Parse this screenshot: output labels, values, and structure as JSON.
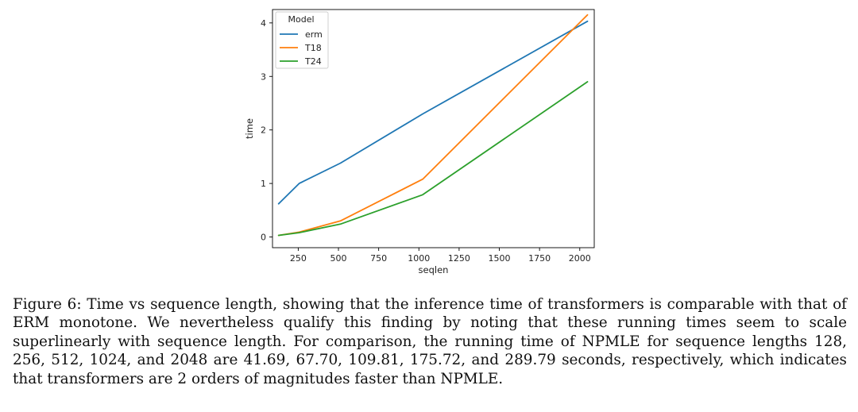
{
  "chart_data": {
    "type": "line",
    "title": "",
    "xlabel": "seqlen",
    "ylabel": "time",
    "xlim": [
      90,
      2090
    ],
    "ylim": [
      -0.2,
      4.25
    ],
    "xticks": [
      250,
      500,
      750,
      1000,
      1250,
      1500,
      1750,
      2000
    ],
    "xtick_labels": [
      "250",
      "500",
      "750",
      "1000",
      "1250",
      "1500",
      "1750",
      "2000"
    ],
    "yticks": [
      0,
      1,
      2,
      3,
      4
    ],
    "ytick_labels": [
      "0",
      "1",
      "2",
      "3",
      "4"
    ],
    "grid": false,
    "legend": {
      "title": "Model",
      "position": "top-left"
    },
    "x": [
      128,
      256,
      512,
      1024,
      2048
    ],
    "series": [
      {
        "name": "erm",
        "color": "#1f77b4",
        "values": [
          0.62,
          1.0,
          1.38,
          2.3,
          4.03
        ]
      },
      {
        "name": "T18",
        "color": "#ff7f0e",
        "values": [
          0.03,
          0.09,
          0.3,
          1.08,
          4.15
        ]
      },
      {
        "name": "T24",
        "color": "#2ca02c",
        "values": [
          0.03,
          0.08,
          0.24,
          0.79,
          2.9
        ]
      }
    ]
  },
  "caption": {
    "text": "Figure 6: Time vs sequence length, showing that the inference time of transformers is comparable with that of ERM monotone. We nevertheless qualify this finding by noting that these running times seem to scale superlinearly with sequence length. For comparison, the running time of NPMLE for sequence lengths 128, 256, 512, 1024, and 2048 are 41.69, 67.70, 109.81, 175.72, and 289.79 seconds, respectively, which indicates that transformers are 2 orders of magnitudes faster than NPMLE."
  }
}
